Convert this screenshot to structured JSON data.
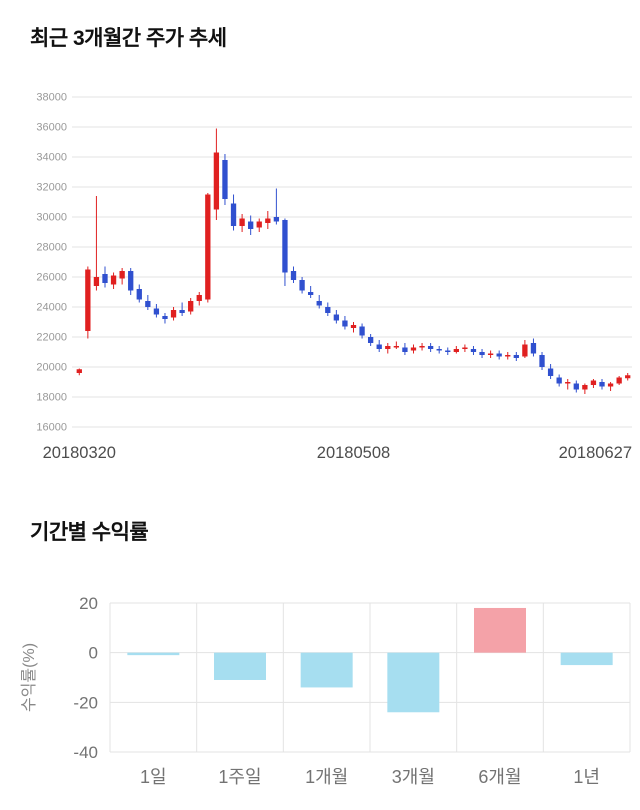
{
  "page": {
    "background": "#ffffff"
  },
  "sections": {
    "price_trend_title": "최근 3개월간 주가 추세",
    "returns_title": "기간별 수익률"
  },
  "chart_data": [
    {
      "type": "candlestick",
      "title": "최근 3개월간 주가 추세",
      "ylim": [
        16000,
        38000
      ],
      "yticks": [
        38000,
        36000,
        34000,
        32000,
        30000,
        28000,
        26000,
        24000,
        22000,
        20000,
        18000,
        16000
      ],
      "x_axis_labels": [
        "20180320",
        "20180508",
        "20180627"
      ],
      "legend": "none",
      "grid": "horizontal",
      "colors": {
        "up": "#e02020",
        "down": "#3050cf",
        "grid": "#e3e3e3",
        "tick_text": "#999999",
        "axis_text": "#4d4d4d"
      },
      "ohlc_columns": [
        "open",
        "high",
        "low",
        "close"
      ],
      "ohlc": [
        [
          19600,
          19900,
          19450,
          19850
        ],
        [
          22400,
          26700,
          21900,
          26500
        ],
        [
          25400,
          31400,
          25100,
          26000
        ],
        [
          26200,
          26700,
          25300,
          25600
        ],
        [
          25500,
          26300,
          25200,
          26100
        ],
        [
          25900,
          26600,
          25500,
          26400
        ],
        [
          26400,
          26600,
          24800,
          25100
        ],
        [
          25200,
          25500,
          24300,
          24500
        ],
        [
          24400,
          24800,
          23800,
          24000
        ],
        [
          23900,
          24200,
          23300,
          23500
        ],
        [
          23400,
          23600,
          22900,
          23200
        ],
        [
          23300,
          24000,
          23100,
          23800
        ],
        [
          23800,
          24300,
          23400,
          23600
        ],
        [
          23700,
          24600,
          23500,
          24400
        ],
        [
          24400,
          25000,
          24100,
          24800
        ],
        [
          24500,
          31600,
          24300,
          31500
        ],
        [
          30500,
          35900,
          29800,
          34300
        ],
        [
          33800,
          34200,
          30800,
          31200
        ],
        [
          30900,
          31500,
          29100,
          29400
        ],
        [
          29400,
          30200,
          29000,
          29900
        ],
        [
          29700,
          30100,
          28800,
          29200
        ],
        [
          29300,
          29900,
          29000,
          29700
        ],
        [
          29600,
          30400,
          29200,
          29900
        ],
        [
          30000,
          31900,
          29500,
          29700
        ],
        [
          29800,
          29900,
          25400,
          26300
        ],
        [
          26400,
          26700,
          25600,
          25800
        ],
        [
          25800,
          26000,
          24900,
          25100
        ],
        [
          25000,
          25400,
          24600,
          24800
        ],
        [
          24400,
          24800,
          23900,
          24100
        ],
        [
          24000,
          24300,
          23400,
          23600
        ],
        [
          23500,
          23800,
          22900,
          23100
        ],
        [
          23100,
          23400,
          22500,
          22700
        ],
        [
          22600,
          23000,
          22300,
          22800
        ],
        [
          22700,
          22900,
          21900,
          22100
        ],
        [
          22000,
          22200,
          21400,
          21600
        ],
        [
          21500,
          21800,
          21000,
          21200
        ],
        [
          21200,
          21600,
          20900,
          21400
        ],
        [
          21300,
          21700,
          21200,
          21400
        ],
        [
          21300,
          21600,
          20800,
          21000
        ],
        [
          21100,
          21500,
          20900,
          21300
        ],
        [
          21300,
          21600,
          21100,
          21400
        ],
        [
          21400,
          21600,
          21000,
          21200
        ],
        [
          21200,
          21400,
          20900,
          21100
        ],
        [
          21100,
          21300,
          20800,
          21000
        ],
        [
          21000,
          21400,
          20900,
          21200
        ],
        [
          21200,
          21500,
          21000,
          21300
        ],
        [
          21200,
          21400,
          20800,
          21000
        ],
        [
          21000,
          21200,
          20600,
          20800
        ],
        [
          20800,
          21100,
          20600,
          20900
        ],
        [
          20900,
          21100,
          20500,
          20700
        ],
        [
          20700,
          21000,
          20500,
          20800
        ],
        [
          20800,
          21000,
          20400,
          20600
        ],
        [
          20700,
          21800,
          20600,
          21500
        ],
        [
          21600,
          21900,
          20700,
          20900
        ],
        [
          20800,
          21000,
          19800,
          20000
        ],
        [
          19900,
          20200,
          19200,
          19400
        ],
        [
          19300,
          19500,
          18700,
          18900
        ],
        [
          18900,
          19200,
          18500,
          19000
        ],
        [
          18900,
          19100,
          18300,
          18500
        ],
        [
          18500,
          18900,
          18200,
          18800
        ],
        [
          18800,
          19200,
          18600,
          19100
        ],
        [
          19000,
          19200,
          18500,
          18700
        ],
        [
          18700,
          19000,
          18400,
          18900
        ],
        [
          18900,
          19400,
          18800,
          19300
        ],
        [
          19250,
          19600,
          19100,
          19450
        ]
      ]
    },
    {
      "type": "bar",
      "title": "기간별 수익률",
      "ylabel": "수익률(%)",
      "categories": [
        "1일",
        "1주일",
        "1개월",
        "3개월",
        "6개월",
        "1년"
      ],
      "values": [
        -1,
        -11,
        -14,
        -24,
        18,
        -5
      ],
      "ylim": [
        -40,
        20
      ],
      "yticks": [
        20,
        0,
        -20,
        -40
      ],
      "grid": "both",
      "legend": "none",
      "colors": {
        "positive": "#f4a2a8",
        "negative": "#a6def0",
        "grid": "#e3e3e3",
        "tick_text": "#737373",
        "axis_label": "#888888"
      }
    }
  ]
}
